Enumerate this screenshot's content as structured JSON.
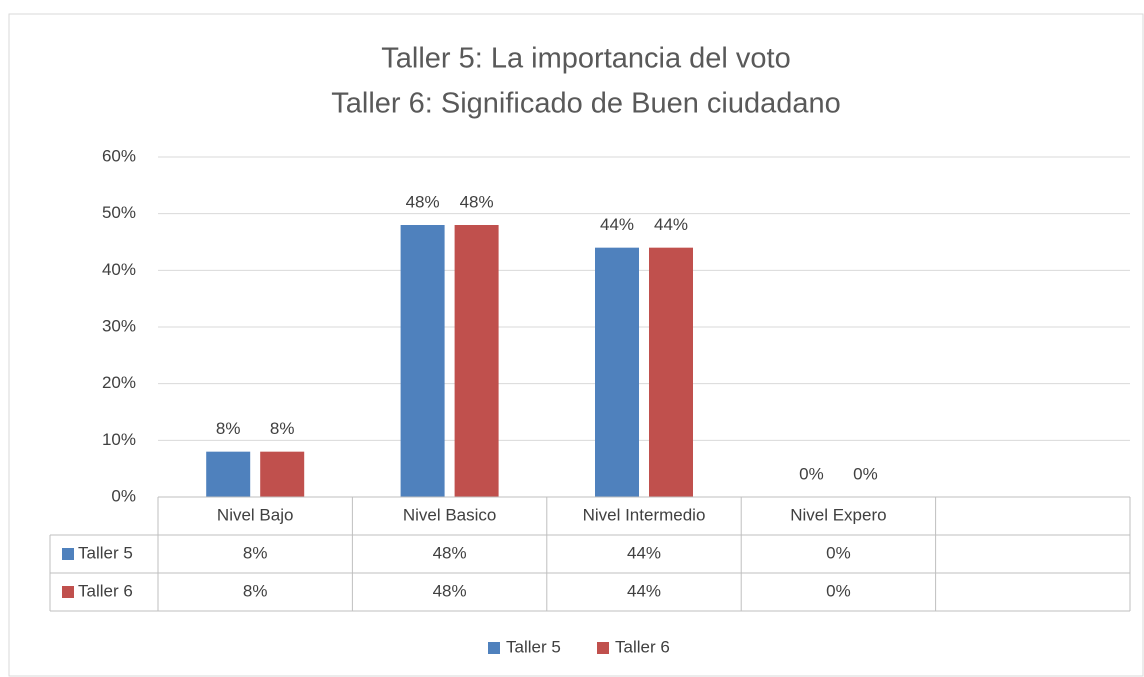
{
  "chart_data": {
    "type": "bar",
    "title": [
      "Taller 5: La importancia del voto",
      "Taller 6: Significado de Buen ciudadano"
    ],
    "categories": [
      "Nivel Bajo",
      "Nivel Basico",
      "Nivel Intermedio",
      "Nivel Expero",
      null
    ],
    "series": [
      {
        "name": "Taller 5",
        "color": "#4f81bd",
        "values": [
          8,
          48,
          44,
          0,
          null
        ],
        "value_labels": [
          "8%",
          "48%",
          "44%",
          "0%",
          null
        ]
      },
      {
        "name": "Taller 6",
        "color": "#c0504d",
        "values": [
          8,
          48,
          44,
          0,
          null
        ],
        "value_labels": [
          "8%",
          "48%",
          "44%",
          "0%",
          null
        ]
      }
    ],
    "ylim": [
      0,
      60
    ],
    "yticks": [
      {
        "value": 0,
        "label": "0%"
      },
      {
        "value": 10,
        "label": "10%"
      },
      {
        "value": 20,
        "label": "20%"
      },
      {
        "value": 30,
        "label": "30%"
      },
      {
        "value": 40,
        "label": "40%"
      },
      {
        "value": 50,
        "label": "50%"
      },
      {
        "value": 60,
        "label": "60%"
      }
    ],
    "grid": true,
    "legend": "bottom",
    "data_table": true
  }
}
